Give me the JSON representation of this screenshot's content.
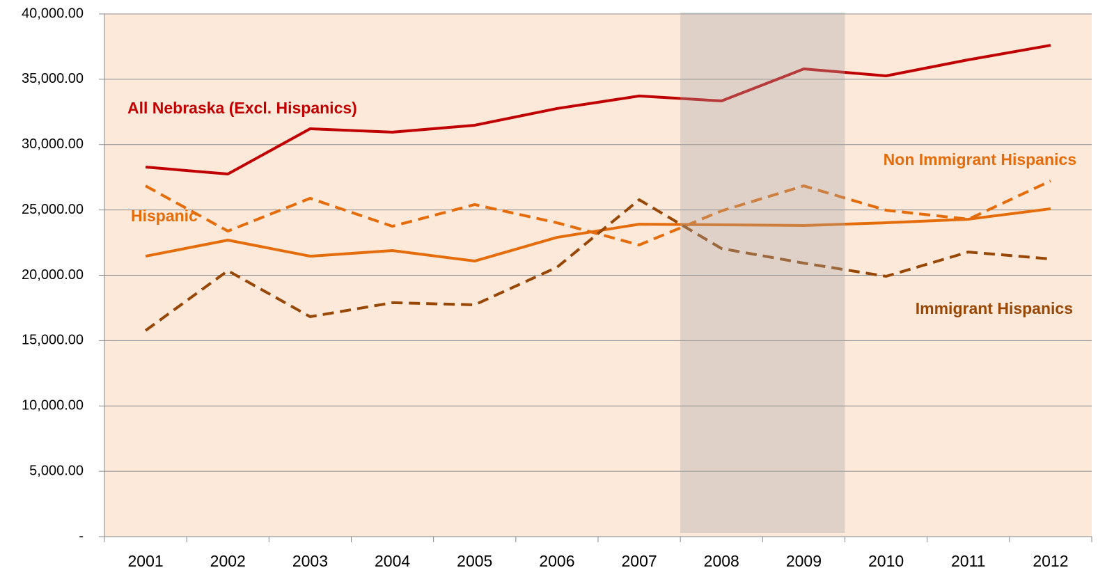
{
  "chart_data": {
    "type": "line",
    "categories": [
      "2001",
      "2002",
      "2003",
      "2004",
      "2005",
      "2006",
      "2007",
      "2008",
      "2009",
      "2010",
      "2011",
      "2012"
    ],
    "series": [
      {
        "name": "All Nebraska (Excl. Hispanics)",
        "color": "#c00000",
        "dashed": false,
        "values": [
          28280,
          27750,
          31210,
          30950,
          31480,
          32760,
          33720,
          33340,
          35790,
          35260,
          36490,
          37600
        ]
      },
      {
        "name": "Hispanic",
        "color": "#e46c0a",
        "dashed": false,
        "values": [
          21460,
          22690,
          21460,
          21890,
          21090,
          22900,
          23910,
          23860,
          23810,
          24020,
          24290,
          25090
        ]
      },
      {
        "name": "Non Immigrant Hispanics",
        "color": "#e46c0a",
        "dashed": true,
        "values": [
          26840,
          23380,
          25890,
          23750,
          25410,
          24020,
          22320,
          24930,
          26840,
          24980,
          24290,
          27220
        ]
      },
      {
        "name": "Immigrant Hispanics",
        "color": "#974706",
        "dashed": true,
        "values": [
          15770,
          20350,
          16830,
          17900,
          17740,
          20610,
          25780,
          22050,
          20930,
          19920,
          21780,
          21250
        ]
      }
    ],
    "ylim": [
      0,
      40000
    ],
    "yticks": [
      {
        "value": 0,
        "label": "-"
      },
      {
        "value": 5000,
        "label": "5,000.00"
      },
      {
        "value": 10000,
        "label": "10,000.00"
      },
      {
        "value": 15000,
        "label": "15,000.00"
      },
      {
        "value": 20000,
        "label": "20,000.00"
      },
      {
        "value": 25000,
        "label": "25,000.00"
      },
      {
        "value": 30000,
        "label": "30,000.00"
      },
      {
        "value": 35000,
        "label": "35,000.00"
      },
      {
        "value": 40000,
        "label": "40,000.00"
      }
    ],
    "grid": true,
    "shaded_range": [
      "2008",
      "2009"
    ]
  }
}
